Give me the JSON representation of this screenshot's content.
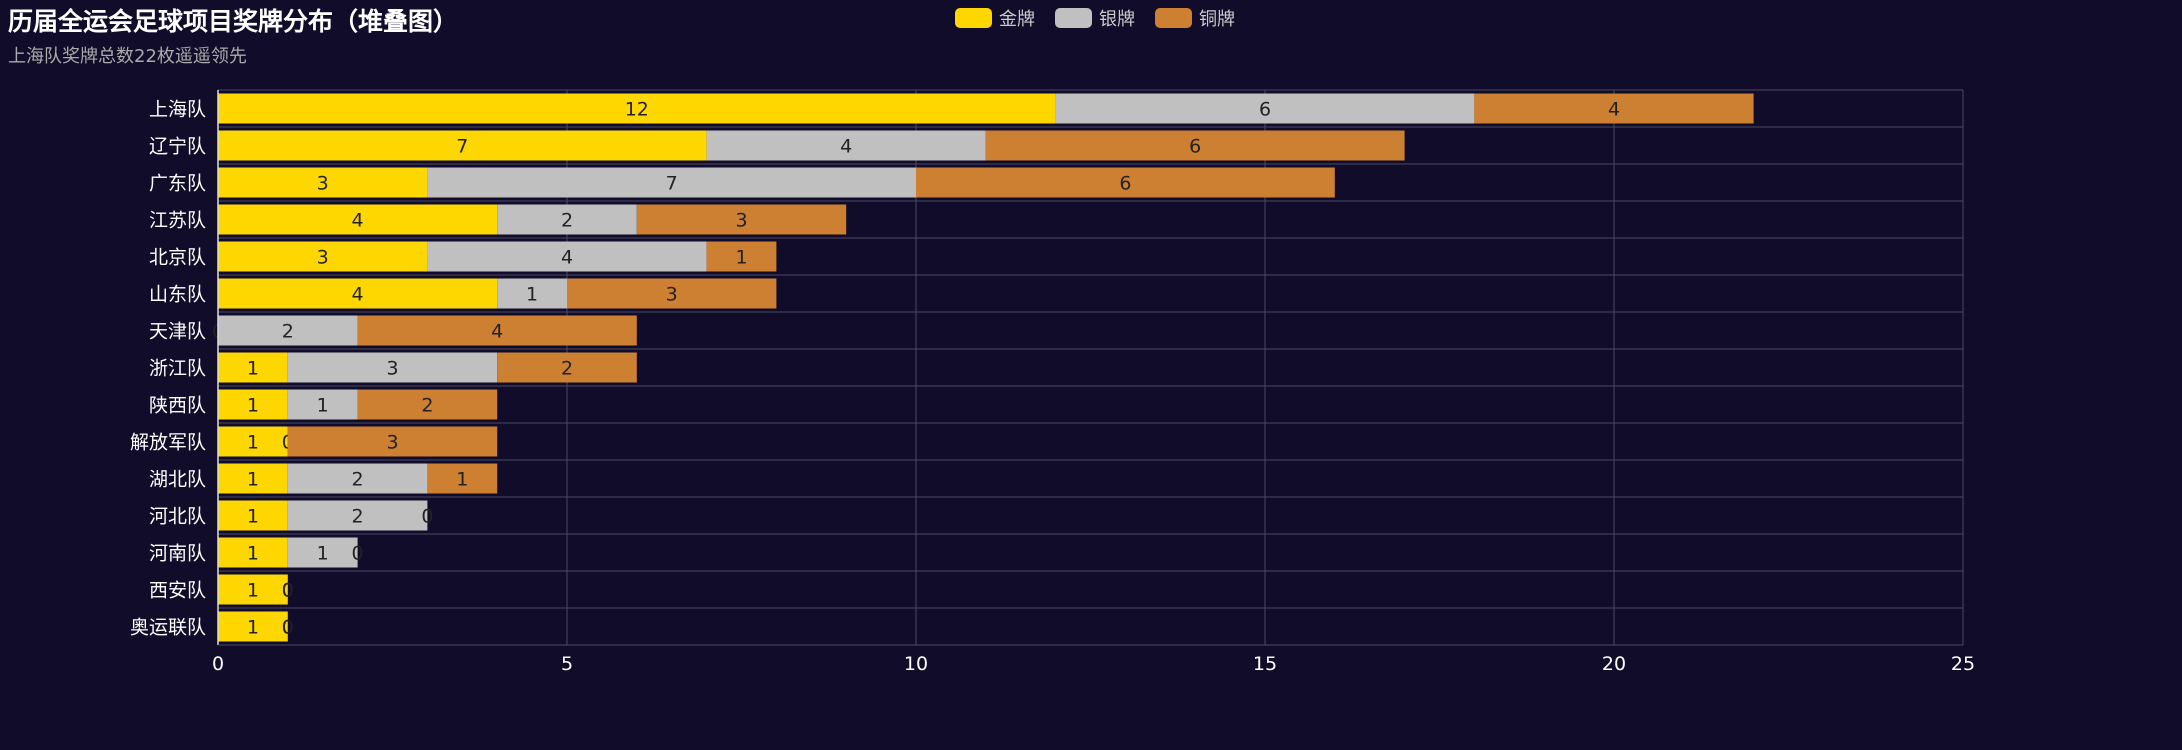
{
  "chart_data": {
    "type": "bar",
    "orientation": "horizontal",
    "stacked": true,
    "title": "历届全运会足球项目奖牌分布（堆叠图）",
    "subtitle": "上海队奖牌总数22枚遥遥领先",
    "categories": [
      "上海队",
      "辽宁队",
      "广东队",
      "江苏队",
      "北京队",
      "山东队",
      "天津队",
      "浙江队",
      "陕西队",
      "解放军队",
      "湖北队",
      "河北队",
      "河南队",
      "西安队",
      "奥运联队"
    ],
    "series": [
      {
        "name": "金牌",
        "color": "#ffd700",
        "values": [
          12,
          7,
          3,
          4,
          3,
          4,
          0,
          1,
          1,
          1,
          1,
          1,
          1,
          1,
          1
        ]
      },
      {
        "name": "银牌",
        "color": "#c0c0c0",
        "values": [
          6,
          4,
          7,
          2,
          4,
          1,
          2,
          3,
          1,
          0,
          2,
          2,
          1,
          0,
          0
        ]
      },
      {
        "name": "铜牌",
        "color": "#cd7f32",
        "values": [
          4,
          6,
          6,
          3,
          1,
          3,
          4,
          2,
          2,
          3,
          1,
          0,
          0,
          0,
          0
        ]
      }
    ],
    "xlim": [
      0,
      25
    ],
    "xticks": [
      "0",
      "5",
      "10",
      "15",
      "20",
      "25"
    ],
    "grid": true,
    "legend_position": "top-center"
  }
}
